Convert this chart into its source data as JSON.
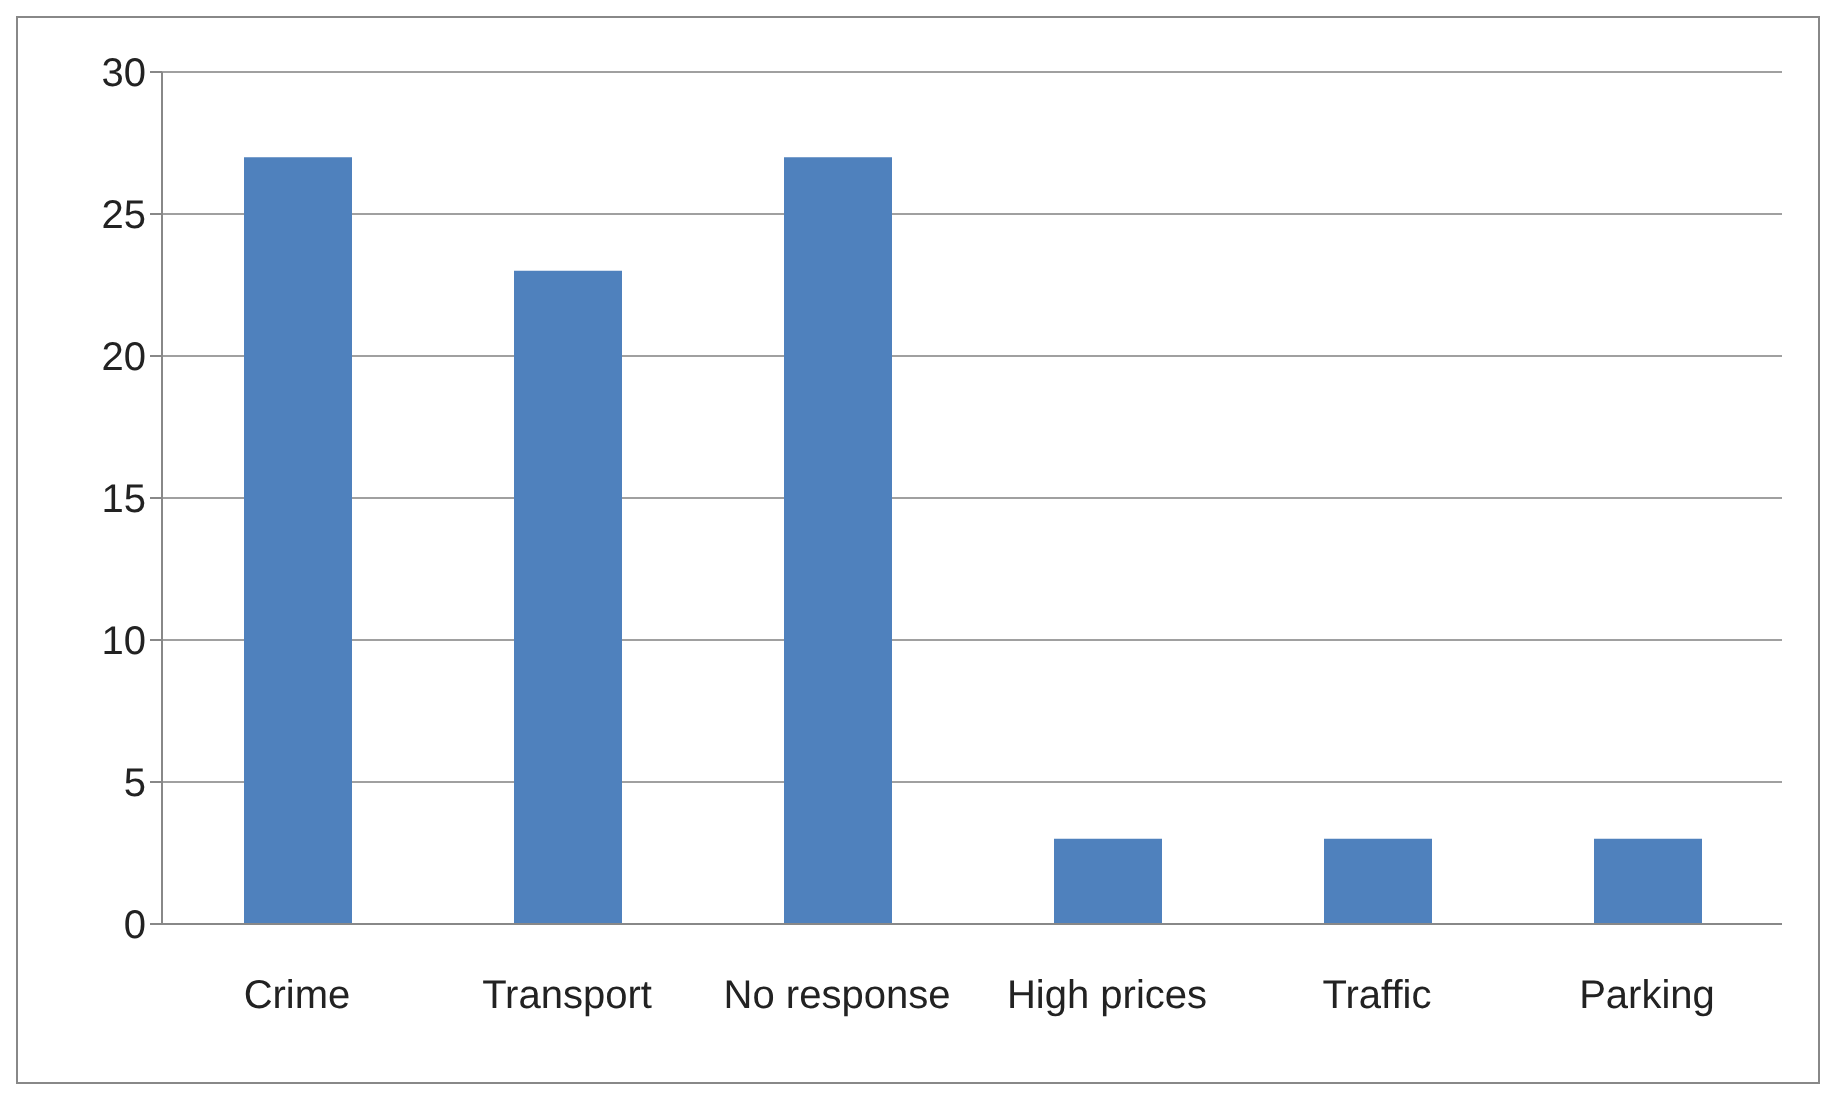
{
  "chart_data": {
    "type": "bar",
    "categories": [
      "Crime",
      "Transport",
      "No response",
      "High prices",
      "Traffic",
      "Parking"
    ],
    "values": [
      27,
      23,
      27,
      3,
      3,
      3
    ],
    "color": "#4f81bd",
    "ylim": [
      0,
      30
    ],
    "yticks": [
      0,
      5,
      10,
      15,
      20,
      25,
      30
    ],
    "grid": "y",
    "legend": false
  }
}
